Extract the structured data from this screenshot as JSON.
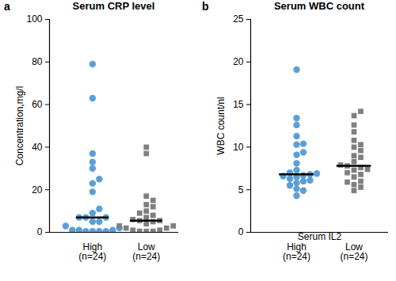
{
  "chart_data": [
    {
      "type": "scatter",
      "panel_label": "a",
      "title": "Serum CRP level",
      "ylabel": "Concentration,mg/l",
      "ylim": [
        0,
        100
      ],
      "yticks": [
        0,
        20,
        40,
        60,
        80,
        100
      ],
      "series": [
        {
          "name": "High\n(n=24)",
          "color": "#5b9fd9",
          "marker": "circle",
          "median": 7,
          "values": [
            79,
            63,
            37,
            33,
            30,
            25,
            23,
            19,
            11,
            9,
            7,
            7,
            7,
            5,
            5,
            3,
            2,
            1,
            1,
            1,
            0.5,
            0.5,
            0.5,
            0.5
          ]
        },
        {
          "name": "Low\n(n=24)",
          "color": "#7f7f7f",
          "marker": "square",
          "median": 5.5,
          "values": [
            40,
            37,
            17,
            15,
            13,
            12,
            10,
            9,
            8,
            7,
            6,
            5.5,
            5.5,
            5,
            4,
            3,
            3,
            2,
            2,
            1,
            1,
            0.5,
            0.5,
            0.5
          ]
        }
      ]
    },
    {
      "type": "scatter",
      "panel_label": "b",
      "title": "Serum WBC count",
      "ylabel": "WBC count/nl",
      "xlabel": "Serum IL2",
      "ylim": [
        0,
        25
      ],
      "yticks": [
        0,
        5,
        10,
        15,
        20,
        25
      ],
      "series": [
        {
          "name": "High\n(n=24)",
          "color": "#5b9fd9",
          "marker": "circle",
          "median": 6.8,
          "values": [
            19.1,
            13.4,
            12.6,
            11.3,
            10.4,
            10.3,
            9.4,
            9.1,
            8.1,
            7.3,
            7.0,
            6.9,
            6.8,
            6.7,
            6.6,
            6.5,
            6.3,
            6.1,
            6.0,
            5.8,
            5.5,
            5.1,
            4.9,
            4.3
          ]
        },
        {
          "name": "Low\n(n=24)",
          "color": "#7f7f7f",
          "marker": "square",
          "median": 7.8,
          "values": [
            14.2,
            13.7,
            12.6,
            11.8,
            10.8,
            10.3,
            10.0,
            9.6,
            9.0,
            8.8,
            8.3,
            7.9,
            7.8,
            7.6,
            7.4,
            7.3,
            7.0,
            6.8,
            6.5,
            6.0,
            5.9,
            5.6,
            5.3,
            4.9
          ]
        }
      ]
    }
  ]
}
